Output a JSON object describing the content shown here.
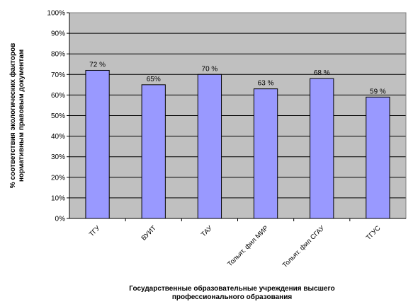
{
  "chart_data": {
    "type": "bar",
    "title": "",
    "categories": [
      "ТГУ",
      "ВУИТ",
      "ТАУ",
      "Тольят. фил МИР",
      "Тольят. фил СГАУ",
      "ТГУС"
    ],
    "values": [
      72,
      65,
      70,
      63,
      68,
      59
    ],
    "data_labels": [
      "72 %",
      "65%",
      "70 %",
      "63 %",
      "68 %",
      "59 %"
    ],
    "ylim": [
      0,
      100
    ],
    "yticks": [
      0,
      10,
      20,
      30,
      40,
      50,
      60,
      70,
      80,
      90,
      100
    ],
    "ytick_labels": [
      "0%",
      "10%",
      "20%",
      "30%",
      "40%",
      "50%",
      "60%",
      "70%",
      "80%",
      "90%",
      "100%"
    ],
    "ylabel_lines": [
      "% соответствия экологических факторов",
      "нормативным правовым документам"
    ],
    "xlabel_lines": [
      "Государственные образовательные учреждения высшего",
      "профессионального образования"
    ],
    "grid": true,
    "legend": "none",
    "colors": {
      "plot_bg": "#c0c0c0",
      "bar": "#9999ff",
      "bar_edge": "#000000",
      "grid": "#000000"
    }
  }
}
